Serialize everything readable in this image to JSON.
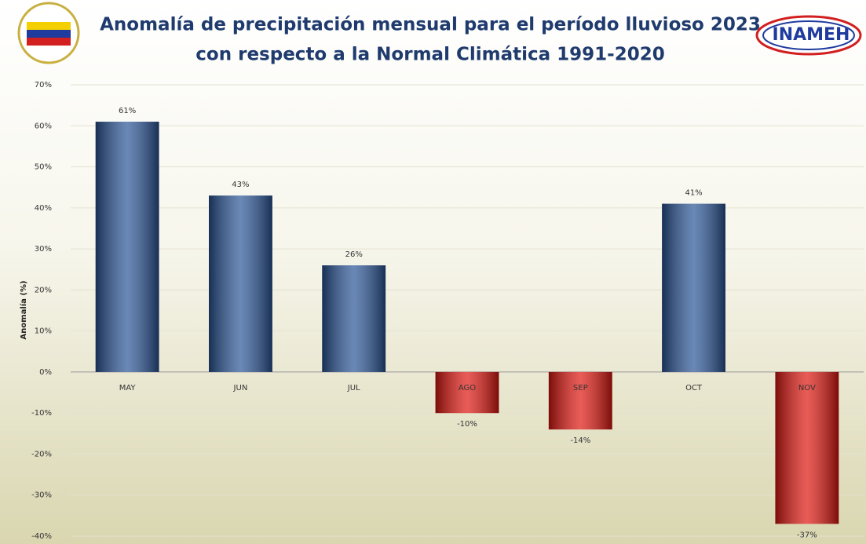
{
  "chart_data": {
    "type": "bar",
    "title": "Anomalía de precipitación mensual para el período lluvioso 2023",
    "subtitle": "con respecto a la Normal Climática 1991-2020",
    "logo_text": "INAMEH",
    "ylabel": "Anomalía (%)",
    "categories": [
      "MAY",
      "JUN",
      "JUL",
      "AGO",
      "SEP",
      "OCT",
      "NOV"
    ],
    "values": [
      61,
      43,
      26,
      -10,
      -14,
      41,
      -37
    ],
    "value_labels": [
      "61%",
      "43%",
      "26%",
      "-10%",
      "-14%",
      "41%",
      "-37%"
    ],
    "colors": [
      "#2a5597",
      "#2a5597",
      "#2a5597",
      "#e0160f",
      "#e0160f",
      "#2a5597",
      "#e0160f"
    ],
    "ylim": [
      -40,
      70
    ],
    "yticks": [
      {
        "value": -40,
        "label": "-40%"
      },
      {
        "value": -30,
        "label": "-30%"
      },
      {
        "value": -20,
        "label": "-20%"
      },
      {
        "value": -10,
        "label": "-10%"
      },
      {
        "value": 0,
        "label": "0%"
      },
      {
        "value": 10,
        "label": "10%"
      },
      {
        "value": 20,
        "label": "20%"
      },
      {
        "value": 30,
        "label": "30%"
      },
      {
        "value": 40,
        "label": "40%"
      },
      {
        "value": 50,
        "label": "50%"
      },
      {
        "value": 60,
        "label": "60%"
      },
      {
        "value": 70,
        "label": "70%"
      }
    ],
    "grid": true
  }
}
